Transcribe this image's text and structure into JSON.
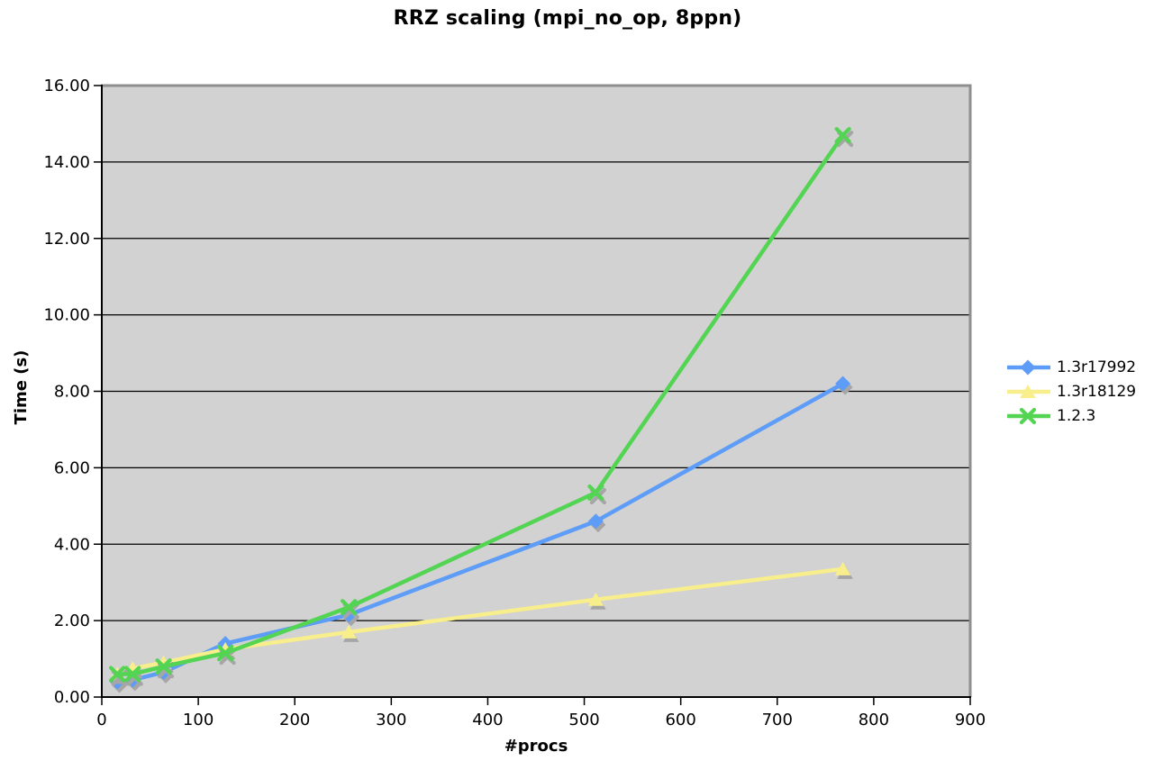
{
  "chart_data": {
    "type": "line",
    "title": "RRZ scaling (mpi_no_op, 8ppn)",
    "xlabel": "#procs",
    "ylabel": "Time (s)",
    "xlim": [
      0,
      900
    ],
    "ylim": [
      0,
      16
    ],
    "x_ticks": [
      0,
      100,
      200,
      300,
      400,
      500,
      600,
      700,
      800,
      900
    ],
    "y_ticks": [
      "0.00",
      "2.00",
      "4.00",
      "6.00",
      "8.00",
      "10.00",
      "12.00",
      "14.00",
      "16.00"
    ],
    "grid": "horizontal-only",
    "legend_position": "right",
    "plot_background": "#d2d2d2",
    "frame_color": "#8f8f8f",
    "axis_color": "#000000",
    "marker_shadow_color": "#a6a6a6",
    "x": [
      16,
      32,
      64,
      128,
      256,
      512,
      768
    ],
    "series": [
      {
        "name": "1.3r17992",
        "marker": "diamond",
        "color": "#5d9cf7",
        "values": [
          0.4,
          0.45,
          0.65,
          1.4,
          2.15,
          4.6,
          8.2
        ]
      },
      {
        "name": "1.3r18129",
        "marker": "triangle",
        "color": "#f8ee8c",
        "values": [
          0.6,
          0.75,
          0.9,
          1.25,
          1.7,
          2.55,
          3.35
        ]
      },
      {
        "name": "1.2.3",
        "marker": "x",
        "color": "#53d453",
        "values": [
          0.6,
          0.6,
          0.8,
          1.15,
          2.35,
          5.35,
          14.7
        ]
      }
    ]
  }
}
